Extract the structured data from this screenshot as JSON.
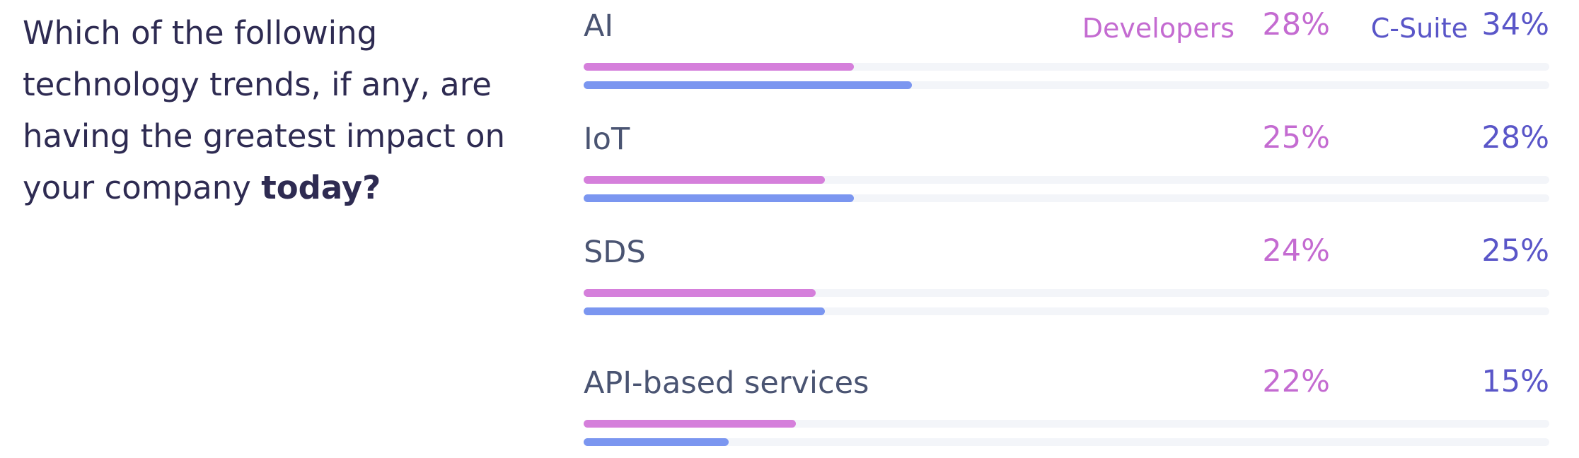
{
  "question": {
    "text_main": "Which of the following technology trends, if any, are having the greatest impact on your company ",
    "text_bold": "today?"
  },
  "colors": {
    "question_text": "#2e2b52",
    "category_text": "#4a5472",
    "developers": "#c46bd1",
    "developers_bar": "#d57fdb",
    "c_suite": "#5a56c8",
    "c_suite_bar": "#7b96f0",
    "track": "#f3f5f9"
  },
  "chart_data": {
    "type": "bar",
    "orientation": "horizontal",
    "categories": [
      "AI",
      "IoT",
      "SDS",
      "API-based services"
    ],
    "series": [
      {
        "name": "Developers",
        "values": [
          28,
          25,
          24,
          22
        ],
        "labels": [
          "28%",
          "25%",
          "24%",
          "22%"
        ]
      },
      {
        "name": "C-Suite",
        "values": [
          34,
          28,
          25,
          15
        ],
        "labels": [
          "34%",
          "28%",
          "25%",
          "15%"
        ]
      }
    ],
    "unit": "%",
    "xlim": [
      0,
      100
    ],
    "grid": false,
    "legend": "inline-top-right"
  }
}
